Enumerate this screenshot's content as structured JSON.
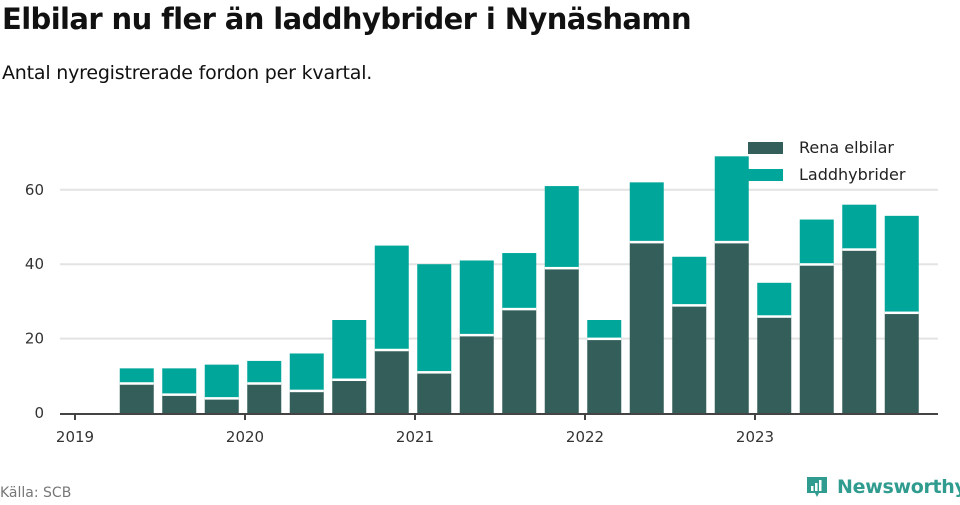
{
  "header": {
    "title": "Elbilar nu fler än laddhybrider i Nynäshamn",
    "subtitle": "Antal nyregistrerade fordon per kvartal."
  },
  "legend": {
    "items": [
      {
        "label": "Rena elbilar",
        "color": "#335e59"
      },
      {
        "label": "Laddhybrider",
        "color": "#00a69a"
      }
    ]
  },
  "footer": {
    "source": "Källa: SCB",
    "brand": "Newsworthy",
    "brand_color": "#2f9c8f"
  },
  "chart_data": {
    "type": "bar",
    "stacked": true,
    "title": "Elbilar nu fler än laddhybrider i Nynäshamn",
    "subtitle": "Antal nyregistrerade fordon per kvartal.",
    "xlabel": "",
    "ylabel": "",
    "ylim": [
      0,
      70
    ],
    "yticks": [
      0,
      20,
      40,
      60
    ],
    "xtick_labels": [
      "2019",
      "2020",
      "2021",
      "2022",
      "2023"
    ],
    "grid": true,
    "legend_position": "top-right",
    "categories": [
      "2019 Q2",
      "2019 Q3",
      "2019 Q4",
      "2020 Q1",
      "2020 Q2",
      "2020 Q3",
      "2020 Q4",
      "2021 Q1",
      "2021 Q2",
      "2021 Q3",
      "2021 Q4",
      "2022 Q1",
      "2022 Q2",
      "2022 Q3",
      "2022 Q4",
      "2023 Q1",
      "2023 Q2",
      "2023 Q3",
      "2023 Q4"
    ],
    "series": [
      {
        "name": "Rena elbilar",
        "color": "#335e59",
        "values": [
          8,
          5,
          4,
          8,
          6,
          9,
          17,
          11,
          21,
          28,
          39,
          20,
          46,
          29,
          46,
          26,
          40,
          44,
          27
        ]
      },
      {
        "name": "Laddhybrider",
        "color": "#00a69a",
        "values": [
          4,
          7,
          9,
          6,
          10,
          16,
          28,
          29,
          20,
          15,
          22,
          5,
          16,
          13,
          23,
          9,
          12,
          12,
          26
        ]
      }
    ],
    "source": "Källa: SCB"
  }
}
